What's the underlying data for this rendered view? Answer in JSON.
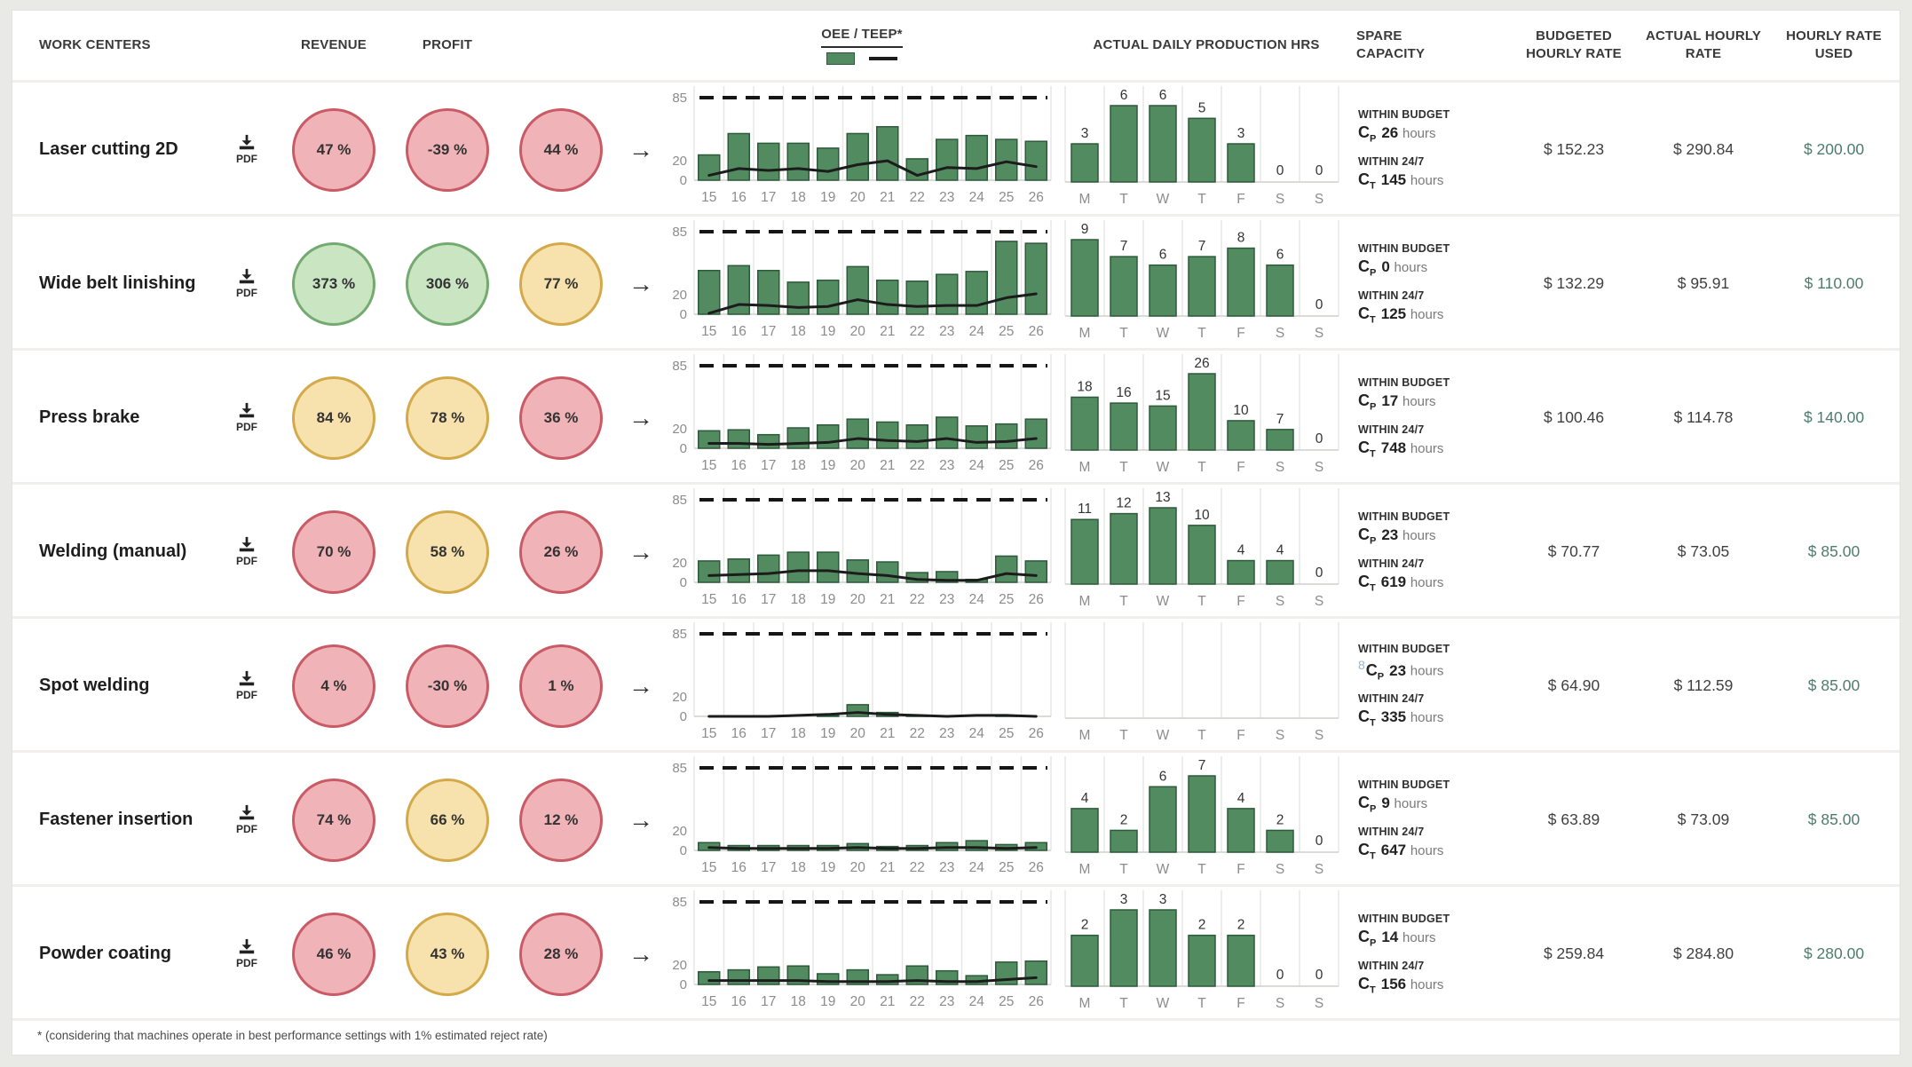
{
  "page": {
    "footnote": "* (considering that machines operate in best performance settings with 1% estimated reject rate)"
  },
  "labels": {
    "pdf": "PDF",
    "within_budget": "WITHIN BUDGET",
    "within_247": "WITHIN 24/7",
    "hours": "hours",
    "c_sym": "C",
    "cp_sub": "P",
    "ct_sub": "T",
    "arrow_glyph": "→"
  },
  "colors": {
    "bar_green_fill": "#538b60",
    "bar_green_border": "#2d5a3b",
    "gauge_red_fill": "#f0b3b8",
    "gauge_red_border": "#c95b66",
    "gauge_green_fill": "#c9e5c2",
    "gauge_green_border": "#74aa6f",
    "gauge_yellow_fill": "#f7e2ad",
    "gauge_yellow_border": "#d4a94a",
    "rate_used_text": "#4c7d6b",
    "teep_line": "#1c1c1c",
    "target_dash": "#161616",
    "gridline": "#e7e7e4",
    "axis_text": "#8c8c8c",
    "prod_label_text": "#333333",
    "stray_mark": "#8fb8cf"
  },
  "table": {
    "headers": {
      "work_centers": "WORK CENTERS",
      "revenue": "REVENUE",
      "profit": "PROFIT",
      "oee_teep": "OEE / TEEP*",
      "daily_hrs": "ACTUAL DAILY PRODUCTION HRS",
      "spare": "SPARE CAPACITY",
      "budgeted": "BUDGETED HOURLY RATE",
      "actual": "ACTUAL HOURLY RATE",
      "used": "HOURLY RATE USED"
    },
    "oee_axis": {
      "yticks": [
        85,
        20,
        0
      ],
      "ymax": 95,
      "target": 85,
      "xticks": [
        "15",
        "16",
        "17",
        "18",
        "19",
        "20",
        "21",
        "22",
        "23",
        "24",
        "25",
        "26"
      ]
    },
    "prod_days": [
      "M",
      "T",
      "W",
      "T",
      "F",
      "S",
      "S"
    ],
    "rows": [
      {
        "name": "Laser cutting 2D",
        "gauges": [
          {
            "value": "47 %",
            "status": "red"
          },
          {
            "value": "-39 %",
            "status": "red"
          },
          {
            "value": "44 %",
            "status": "red"
          }
        ],
        "oee_bars": [
          26,
          48,
          38,
          38,
          33,
          48,
          55,
          22,
          42,
          46,
          42,
          40
        ],
        "teep_line": [
          5,
          12,
          10,
          12,
          9,
          16,
          20,
          5,
          13,
          12,
          19,
          14
        ],
        "prod_hours": [
          3,
          6,
          6,
          5,
          3,
          0,
          0
        ],
        "spare": {
          "cp": "26",
          "ct": "145",
          "stray": ""
        },
        "budgeted_rate": "$ 152.23",
        "actual_rate": "$ 290.84",
        "rate_used": "$ 200.00"
      },
      {
        "name": "Wide belt linishing",
        "gauges": [
          {
            "value": "373 %",
            "status": "green"
          },
          {
            "value": "306 %",
            "status": "green"
          },
          {
            "value": "77 %",
            "status": "yellow"
          }
        ],
        "oee_bars": [
          45,
          50,
          45,
          33,
          35,
          49,
          35,
          34,
          41,
          44,
          75,
          73
        ],
        "teep_line": [
          1,
          10,
          9,
          7,
          8,
          15,
          10,
          8,
          9,
          9,
          17,
          21
        ],
        "prod_hours": [
          9,
          7,
          6,
          7,
          8,
          6,
          0
        ],
        "spare": {
          "cp": "0",
          "ct": "125",
          "stray": ""
        },
        "budgeted_rate": "$ 132.29",
        "actual_rate": "$ 95.91",
        "rate_used": "$ 110.00"
      },
      {
        "name": "Press brake",
        "gauges": [
          {
            "value": "84 %",
            "status": "yellow"
          },
          {
            "value": "78 %",
            "status": "yellow"
          },
          {
            "value": "36 %",
            "status": "red"
          }
        ],
        "oee_bars": [
          18,
          19,
          14,
          21,
          24,
          30,
          27,
          24,
          32,
          23,
          25,
          30
        ],
        "teep_line": [
          5,
          5,
          4,
          5,
          6,
          10,
          8,
          7,
          10,
          6,
          7,
          10
        ],
        "prod_hours": [
          18,
          16,
          15,
          26,
          10,
          7,
          0
        ],
        "spare": {
          "cp": "17",
          "ct": "748",
          "stray": ""
        },
        "budgeted_rate": "$ 100.46",
        "actual_rate": "$ 114.78",
        "rate_used": "$ 140.00"
      },
      {
        "name": "Welding (manual)",
        "gauges": [
          {
            "value": "70 %",
            "status": "red"
          },
          {
            "value": "58 %",
            "status": "yellow"
          },
          {
            "value": "26 %",
            "status": "red"
          }
        ],
        "oee_bars": [
          22,
          24,
          28,
          31,
          31,
          23,
          21,
          10,
          11,
          3,
          27,
          22
        ],
        "teep_line": [
          7,
          8,
          9,
          12,
          12,
          9,
          7,
          3,
          2,
          2,
          9,
          7
        ],
        "prod_hours": [
          11,
          12,
          13,
          10,
          4,
          4,
          0
        ],
        "spare": {
          "cp": "23",
          "ct": "619",
          "stray": ""
        },
        "budgeted_rate": "$ 70.77",
        "actual_rate": "$ 73.05",
        "rate_used": "$ 85.00"
      },
      {
        "name": "Spot welding",
        "gauges": [
          {
            "value": "4 %",
            "status": "red"
          },
          {
            "value": "-30 %",
            "status": "red"
          },
          {
            "value": "1 %",
            "status": "red"
          }
        ],
        "oee_bars": [
          0,
          0,
          0,
          0,
          1,
          12,
          4,
          1,
          0,
          0,
          1,
          0
        ],
        "teep_line": [
          0,
          0,
          0,
          1,
          2,
          4,
          2,
          1,
          0,
          1,
          1,
          0
        ],
        "prod_hours": [],
        "spare": {
          "cp": "23",
          "ct": "335",
          "stray": "8"
        },
        "budgeted_rate": "$ 64.90",
        "actual_rate": "$ 112.59",
        "rate_used": "$ 85.00"
      },
      {
        "name": "Fastener insertion",
        "gauges": [
          {
            "value": "74 %",
            "status": "red"
          },
          {
            "value": "66 %",
            "status": "yellow"
          },
          {
            "value": "12 %",
            "status": "red"
          }
        ],
        "oee_bars": [
          8,
          5,
          5,
          5,
          5,
          7,
          4,
          5,
          8,
          10,
          6,
          8
        ],
        "teep_line": [
          3,
          2,
          2,
          2,
          2,
          3,
          2,
          2,
          3,
          3,
          2,
          3
        ],
        "prod_hours": [
          4,
          2,
          6,
          7,
          4,
          2,
          0
        ],
        "spare": {
          "cp": "9",
          "ct": "647",
          "stray": ""
        },
        "budgeted_rate": "$ 63.89",
        "actual_rate": "$ 73.09",
        "rate_used": "$ 85.00"
      },
      {
        "name": "Powder coating",
        "gauges": [
          {
            "value": "46 %",
            "status": "red"
          },
          {
            "value": "43 %",
            "status": "yellow"
          },
          {
            "value": "28 %",
            "status": "red"
          }
        ],
        "oee_bars": [
          13,
          15,
          18,
          19,
          11,
          15,
          10,
          19,
          14,
          9,
          23,
          24
        ],
        "teep_line": [
          4,
          4,
          4,
          4,
          3,
          3,
          3,
          4,
          3,
          3,
          5,
          7
        ],
        "prod_hours": [
          2,
          3,
          3,
          2,
          2,
          0,
          0
        ],
        "spare": {
          "cp": "14",
          "ct": "156",
          "stray": ""
        },
        "budgeted_rate": "$ 259.84",
        "actual_rate": "$ 284.80",
        "rate_used": "$ 280.00"
      }
    ]
  }
}
